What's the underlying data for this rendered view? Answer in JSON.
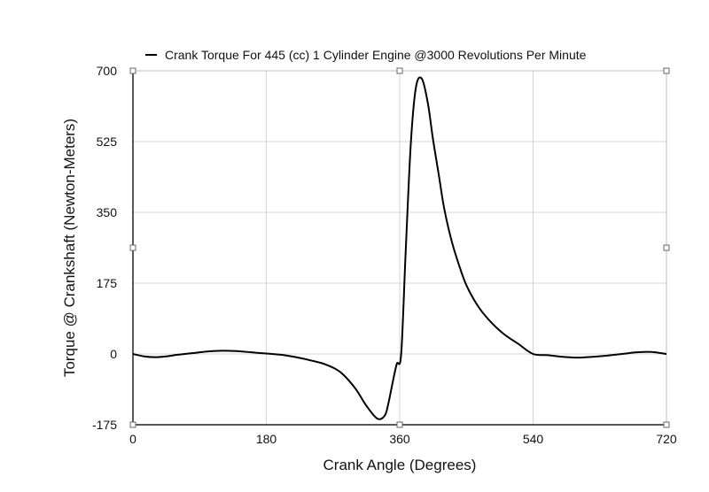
{
  "chart_data": {
    "type": "line",
    "title": "",
    "xlabel": "Crank Angle (Degrees)",
    "ylabel": "Torque @ Crankshaft (Newton-Meters)",
    "xlim": [
      0,
      720
    ],
    "ylim": [
      -175,
      700
    ],
    "xticks": [
      0,
      180,
      360,
      540,
      720
    ],
    "yticks": [
      -175,
      0,
      175,
      350,
      525,
      700
    ],
    "xtick_labels": [
      "0",
      "180",
      "360",
      "540",
      "720"
    ],
    "ytick_labels": [
      "-175",
      "0",
      "175",
      "350",
      "525",
      "700"
    ],
    "grid": true,
    "legend_position": "top-center",
    "series": [
      {
        "name": "Crank Torque For 445 (cc) 1 Cylinder Engine @3000 Revolutions Per Minute",
        "color": "#000000",
        "x": [
          0,
          15,
          30,
          45,
          60,
          80,
          100,
          120,
          140,
          160,
          180,
          200,
          220,
          240,
          260,
          280,
          300,
          315,
          330,
          340,
          345,
          350,
          356,
          362,
          368,
          375,
          382,
          390,
          398,
          405,
          413,
          420,
          430,
          440,
          450,
          465,
          480,
          500,
          520,
          540,
          560,
          580,
          600,
          620,
          640,
          660,
          680,
          700,
          720
        ],
        "y": [
          0,
          -6,
          -8,
          -6,
          -2,
          2,
          6,
          8,
          7,
          4,
          1,
          -2,
          -8,
          -16,
          -26,
          -45,
          -85,
          -128,
          -160,
          -152,
          -120,
          -75,
          -25,
          0,
          250,
          520,
          660,
          680,
          620,
          530,
          440,
          360,
          280,
          220,
          170,
          120,
          85,
          50,
          25,
          0,
          -3,
          -7,
          -9,
          -7,
          -4,
          0,
          4,
          5,
          0
        ]
      }
    ]
  }
}
